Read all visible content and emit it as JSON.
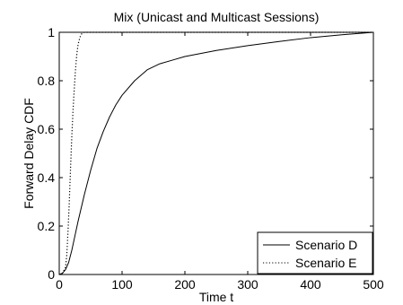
{
  "chart_data": {
    "type": "line",
    "title": "Mix (Unicast and Multicast Sessions)",
    "xlabel": "Time t",
    "ylabel": "Forward Delay CDF",
    "xlim": [
      0,
      500
    ],
    "ylim": [
      0,
      1
    ],
    "xticks": [
      0,
      100,
      200,
      300,
      400,
      500
    ],
    "yticks": [
      0,
      0.2,
      0.4,
      0.6,
      0.8,
      1
    ],
    "xtick_labels": [
      "0",
      "100",
      "200",
      "300",
      "400",
      "500"
    ],
    "ytick_labels": [
      "0",
      "0.2",
      "0.4",
      "0.6",
      "0.8",
      "1"
    ],
    "grid": false,
    "legend_position": "bottom-right",
    "series": [
      {
        "name": "Scenario D",
        "style": "solid",
        "color": "#000000",
        "x": [
          0,
          5,
          10,
          15,
          20,
          25,
          30,
          40,
          50,
          60,
          70,
          80,
          90,
          100,
          120,
          140,
          160,
          180,
          200,
          250,
          300,
          350,
          400,
          450,
          500
        ],
        "y": [
          0,
          0.005,
          0.02,
          0.05,
          0.1,
          0.16,
          0.22,
          0.33,
          0.43,
          0.52,
          0.59,
          0.65,
          0.7,
          0.74,
          0.8,
          0.845,
          0.87,
          0.885,
          0.9,
          0.925,
          0.945,
          0.962,
          0.978,
          0.99,
          1.0
        ]
      },
      {
        "name": "Scenario E",
        "style": "dotted",
        "color": "#000000",
        "x": [
          0,
          5,
          10,
          12,
          14,
          16,
          18,
          20,
          22,
          24,
          26,
          28,
          30,
          33,
          36,
          40,
          500
        ],
        "y": [
          0,
          0.005,
          0.03,
          0.08,
          0.18,
          0.3,
          0.44,
          0.57,
          0.68,
          0.77,
          0.85,
          0.91,
          0.95,
          0.98,
          0.995,
          1.0,
          1.0
        ]
      }
    ]
  }
}
